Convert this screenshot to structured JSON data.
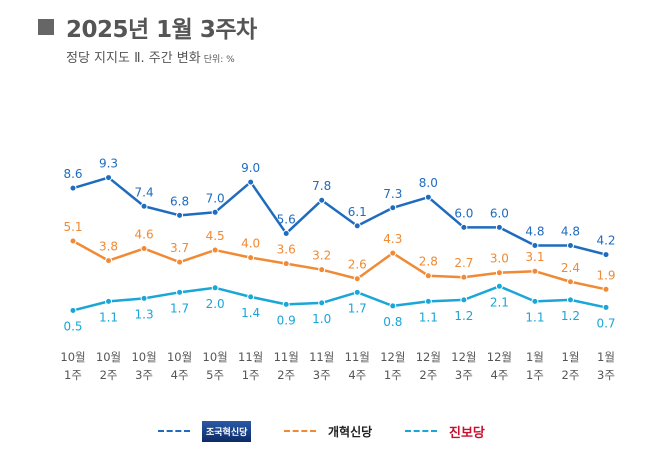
{
  "header": {
    "title": "2025년 1월 3주차",
    "subtitle": "정당 지지도 Ⅱ. 주간 변화",
    "unit": "단위: %"
  },
  "chart_data": {
    "type": "line",
    "title": "2025년 1월 3주차",
    "subtitle": "정당 지지도 Ⅱ. 주간 변화",
    "unit": "%",
    "categories": [
      [
        "10월",
        "1주"
      ],
      [
        "10월",
        "2주"
      ],
      [
        "10월",
        "3주"
      ],
      [
        "10월",
        "4주"
      ],
      [
        "10월",
        "5주"
      ],
      [
        "11월",
        "1주"
      ],
      [
        "11월",
        "2주"
      ],
      [
        "11월",
        "3주"
      ],
      [
        "11월",
        "4주"
      ],
      [
        "12월",
        "1주"
      ],
      [
        "12월",
        "2주"
      ],
      [
        "12월",
        "3주"
      ],
      [
        "12월",
        "4주"
      ],
      [
        "1월",
        "1주"
      ],
      [
        "1월",
        "2주"
      ],
      [
        "1월",
        "3주"
      ]
    ],
    "series": [
      {
        "name": "조국혁신당",
        "color": "#1f6cbf",
        "label_pos": "above",
        "values": [
          8.6,
          9.3,
          7.4,
          6.8,
          7.0,
          9.0,
          5.6,
          7.8,
          6.1,
          7.3,
          8.0,
          6.0,
          6.0,
          4.8,
          4.8,
          4.2
        ]
      },
      {
        "name": "개혁신당",
        "color": "#f08a35",
        "label_pos": "above",
        "values": [
          5.1,
          3.8,
          4.6,
          3.7,
          4.5,
          4.0,
          3.6,
          3.2,
          2.6,
          4.3,
          2.8,
          2.7,
          3.0,
          3.1,
          2.4,
          1.9
        ]
      },
      {
        "name": "진보당",
        "color": "#1aa6d6",
        "label_pos": "below",
        "values": [
          0.5,
          1.1,
          1.3,
          1.7,
          2.0,
          1.4,
          0.9,
          1.0,
          1.7,
          0.8,
          1.1,
          1.2,
          2.1,
          1.1,
          1.2,
          0.7
        ]
      }
    ],
    "grid": false,
    "legend": "bottom"
  }
}
